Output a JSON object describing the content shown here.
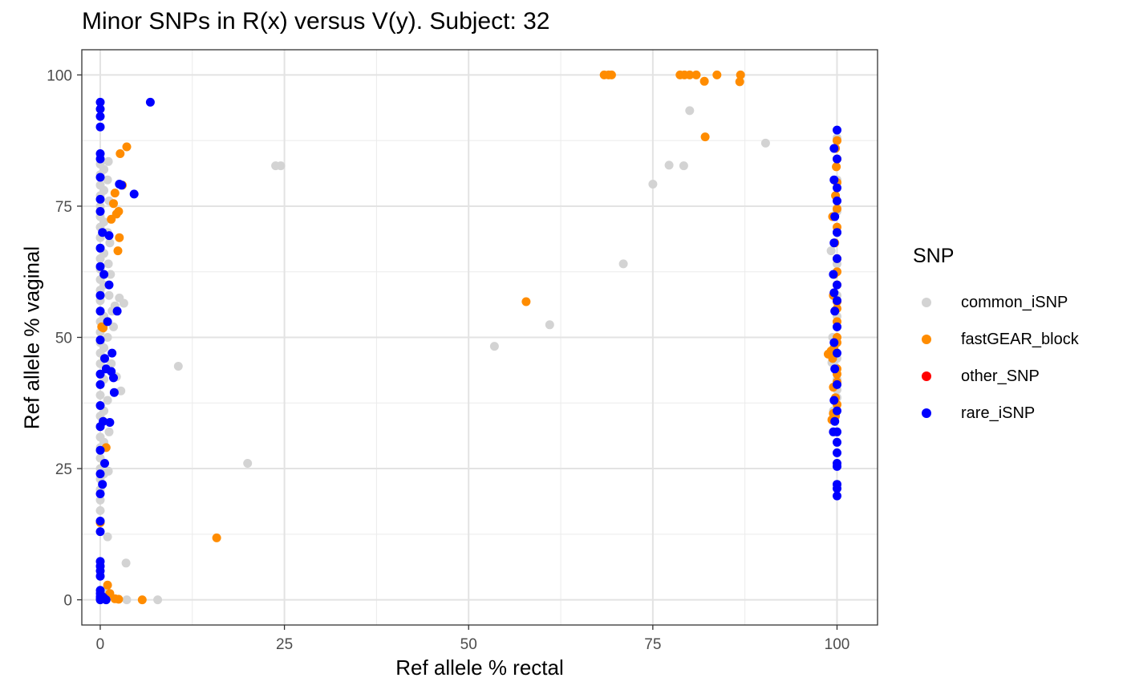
{
  "chart_data": {
    "type": "scatter",
    "title": "Minor SNPs in R(x) versus V(y). Subject: 32",
    "xlabel": "Ref allele % rectal",
    "ylabel": "Ref allele % vaginal",
    "xlim": [
      -2.5,
      105.5
    ],
    "ylim": [
      -4.8,
      104.8
    ],
    "xticks": [
      0,
      25,
      50,
      75,
      100
    ],
    "yticks": [
      0,
      25,
      50,
      75,
      100
    ],
    "grid": true,
    "legend": {
      "title": "SNP",
      "position": "right"
    },
    "series": [
      {
        "name": "common_iSNP",
        "color": "#d3d3d3",
        "points": [
          [
            0,
            83
          ],
          [
            0,
            81
          ],
          [
            0,
            79
          ],
          [
            0,
            77
          ],
          [
            0,
            75
          ],
          [
            0,
            73
          ],
          [
            0,
            71
          ],
          [
            0,
            69
          ],
          [
            0,
            67
          ],
          [
            0,
            65
          ],
          [
            0,
            63
          ],
          [
            0,
            61
          ],
          [
            0,
            59
          ],
          [
            0,
            57
          ],
          [
            0,
            55
          ],
          [
            0,
            53
          ],
          [
            0,
            51
          ],
          [
            0,
            49
          ],
          [
            0,
            47
          ],
          [
            0,
            45
          ],
          [
            0,
            43
          ],
          [
            0,
            41
          ],
          [
            0,
            39
          ],
          [
            0,
            37
          ],
          [
            0,
            35
          ],
          [
            0,
            33
          ],
          [
            0,
            31
          ],
          [
            0,
            29
          ],
          [
            0,
            27
          ],
          [
            0,
            25
          ],
          [
            0,
            23
          ],
          [
            0,
            21
          ],
          [
            0,
            19
          ],
          [
            0,
            17
          ],
          [
            0,
            15
          ],
          [
            0.5,
            82
          ],
          [
            0.5,
            78
          ],
          [
            0.5,
            72
          ],
          [
            0.5,
            66
          ],
          [
            0.5,
            60
          ],
          [
            0.5,
            54
          ],
          [
            0.5,
            48
          ],
          [
            0.5,
            42
          ],
          [
            0.5,
            36
          ],
          [
            0.5,
            30
          ],
          [
            0.5,
            24
          ],
          [
            1.1,
            83.5
          ],
          [
            1,
            80
          ],
          [
            1.2,
            76
          ],
          [
            1,
            70
          ],
          [
            1.1,
            64
          ],
          [
            1.2,
            58
          ],
          [
            1,
            50
          ],
          [
            1.1,
            44
          ],
          [
            1,
            38
          ],
          [
            1.2,
            32
          ],
          [
            1.1,
            24.5
          ],
          [
            1,
            12
          ],
          [
            1.4,
            62
          ],
          [
            1.6,
            55
          ],
          [
            1.8,
            52
          ],
          [
            2,
            56
          ],
          [
            2.2,
            42.5
          ],
          [
            2.6,
            57.5
          ],
          [
            3.2,
            56.5
          ],
          [
            2.8,
            39.8
          ],
          [
            1.5,
            45
          ],
          [
            1.3,
            68
          ],
          [
            3.5,
            7
          ],
          [
            3.6,
            0
          ],
          [
            7.8,
            0
          ],
          [
            1.2,
            0.8
          ],
          [
            0.4,
            1.5
          ],
          [
            10.6,
            44.5
          ],
          [
            20,
            26
          ],
          [
            23.8,
            82.7
          ],
          [
            24.5,
            82.7
          ],
          [
            53.5,
            48.3
          ],
          [
            61,
            52.4
          ],
          [
            71,
            64
          ],
          [
            75,
            79.2
          ],
          [
            77.2,
            82.8
          ],
          [
            79.2,
            82.7
          ],
          [
            80,
            93.2
          ],
          [
            90.3,
            87
          ],
          [
            99.2,
            66.5
          ],
          [
            99.6,
            62
          ],
          [
            99.8,
            58
          ],
          [
            100,
            54
          ],
          [
            99.4,
            50
          ],
          [
            100,
            46
          ],
          [
            99.7,
            44.5
          ],
          [
            100,
            42
          ],
          [
            100,
            40
          ],
          [
            100,
            38.5
          ],
          [
            99.5,
            36
          ],
          [
            100,
            64
          ],
          [
            100,
            70
          ],
          [
            100,
            74
          ],
          [
            100,
            80
          ],
          [
            100,
            88
          ],
          [
            100,
            89.5
          ],
          [
            99.3,
            45.2
          ],
          [
            100,
            52
          ],
          [
            100,
            58
          ]
        ]
      },
      {
        "name": "fastGEAR_block",
        "color": "#ff8c00",
        "points": [
          [
            0,
            14.7
          ],
          [
            0.2,
            52
          ],
          [
            0.4,
            51.8
          ],
          [
            0.8,
            29
          ],
          [
            1.5,
            72.5
          ],
          [
            1.8,
            75.5
          ],
          [
            2,
            77.5
          ],
          [
            2.2,
            73.5
          ],
          [
            2.5,
            74
          ],
          [
            2.6,
            69
          ],
          [
            2.4,
            66.5
          ],
          [
            2.7,
            85
          ],
          [
            3,
            79
          ],
          [
            3.6,
            86.3
          ],
          [
            1,
            2.8
          ],
          [
            1.3,
            1.2
          ],
          [
            2,
            0.2
          ],
          [
            2.5,
            0.1
          ],
          [
            5.7,
            0
          ],
          [
            15.8,
            11.8
          ],
          [
            57.8,
            56.8
          ],
          [
            68.4,
            100
          ],
          [
            69,
            100
          ],
          [
            69.4,
            100
          ],
          [
            78.7,
            100
          ],
          [
            79.3,
            100
          ],
          [
            80,
            100
          ],
          [
            80.9,
            100
          ],
          [
            82,
            98.8
          ],
          [
            82.1,
            88.2
          ],
          [
            83.7,
            100
          ],
          [
            86.8,
            98.7
          ],
          [
            86.9,
            100
          ],
          [
            98.8,
            46.8
          ],
          [
            99.2,
            47.4
          ],
          [
            99.5,
            35.5
          ],
          [
            99.3,
            34.3
          ],
          [
            99.8,
            35
          ],
          [
            100,
            43
          ],
          [
            99.6,
            48
          ],
          [
            100,
            50
          ],
          [
            100,
            53
          ],
          [
            100,
            55.5
          ],
          [
            100,
            44
          ],
          [
            100,
            41.5
          ],
          [
            99.5,
            40.5
          ],
          [
            99.8,
            38.5
          ],
          [
            100,
            60
          ],
          [
            100,
            62.5
          ],
          [
            100,
            65
          ],
          [
            99.7,
            68
          ],
          [
            100,
            71
          ],
          [
            99.4,
            73
          ],
          [
            100,
            74.5
          ],
          [
            99.8,
            77
          ],
          [
            100,
            79.5
          ],
          [
            99.9,
            82.5
          ],
          [
            100,
            84
          ],
          [
            99.8,
            86
          ],
          [
            100,
            87.5
          ],
          [
            99.6,
            62
          ],
          [
            99.5,
            58
          ],
          [
            100,
            56.8
          ],
          [
            100,
            37.2
          ],
          [
            99.4,
            46
          ],
          [
            100,
            49
          ]
        ]
      },
      {
        "name": "other_SNP",
        "color": "#ff0000",
        "points": []
      },
      {
        "name": "rare_iSNP",
        "color": "#0000ff",
        "points": [
          [
            0,
            94.8
          ],
          [
            0,
            93.5
          ],
          [
            0,
            92.1
          ],
          [
            0,
            90.1
          ],
          [
            0,
            85
          ],
          [
            0,
            84
          ],
          [
            0,
            80.5
          ],
          [
            0,
            76.3
          ],
          [
            0,
            74
          ],
          [
            0,
            67
          ],
          [
            0,
            63.5
          ],
          [
            0,
            58
          ],
          [
            0,
            55
          ],
          [
            0,
            49.5
          ],
          [
            0,
            43
          ],
          [
            0,
            41
          ],
          [
            0,
            37
          ],
          [
            0,
            33
          ],
          [
            0,
            28.5
          ],
          [
            0,
            24
          ],
          [
            0,
            20.2
          ],
          [
            0,
            15
          ],
          [
            0,
            13
          ],
          [
            0,
            7.3
          ],
          [
            0,
            6.4
          ],
          [
            0,
            5.5
          ],
          [
            0,
            4.5
          ],
          [
            0,
            1.8
          ],
          [
            0,
            1.2
          ],
          [
            0,
            0.6
          ],
          [
            0,
            0.2
          ],
          [
            0,
            0
          ],
          [
            0.4,
            0.5
          ],
          [
            0.6,
            0.2
          ],
          [
            0.8,
            0
          ],
          [
            0.3,
            70
          ],
          [
            0.5,
            62
          ],
          [
            0.6,
            46
          ],
          [
            0.4,
            34
          ],
          [
            0.6,
            26
          ],
          [
            0.3,
            22
          ],
          [
            0.8,
            44
          ],
          [
            1,
            53
          ],
          [
            1.2,
            60
          ],
          [
            1.2,
            69.4
          ],
          [
            1.5,
            43.5
          ],
          [
            1.6,
            47
          ],
          [
            1.8,
            42.3
          ],
          [
            1.9,
            39.5
          ],
          [
            1.3,
            33.8
          ],
          [
            2.3,
            55
          ],
          [
            2.6,
            79.2
          ],
          [
            2.9,
            79
          ],
          [
            4.6,
            77.3
          ],
          [
            6.8,
            94.8
          ],
          [
            100,
            89.5
          ],
          [
            99.6,
            86
          ],
          [
            100,
            84
          ],
          [
            99.6,
            80
          ],
          [
            100,
            78.5
          ],
          [
            100,
            76
          ],
          [
            99.7,
            73
          ],
          [
            100,
            70
          ],
          [
            99.6,
            68
          ],
          [
            100,
            65
          ],
          [
            99.5,
            62
          ],
          [
            100,
            60
          ],
          [
            99.6,
            58.5
          ],
          [
            100,
            57
          ],
          [
            99.7,
            55
          ],
          [
            100,
            52
          ],
          [
            99.6,
            49
          ],
          [
            100,
            47
          ],
          [
            99.7,
            44
          ],
          [
            100,
            41
          ],
          [
            99.6,
            38
          ],
          [
            100,
            36
          ],
          [
            99.7,
            34
          ],
          [
            99.5,
            32
          ],
          [
            100,
            32
          ],
          [
            100,
            30
          ],
          [
            100,
            28
          ],
          [
            100,
            26
          ],
          [
            100,
            25.4
          ],
          [
            100,
            22
          ],
          [
            100,
            21.2
          ],
          [
            100,
            19.8
          ]
        ]
      }
    ]
  }
}
